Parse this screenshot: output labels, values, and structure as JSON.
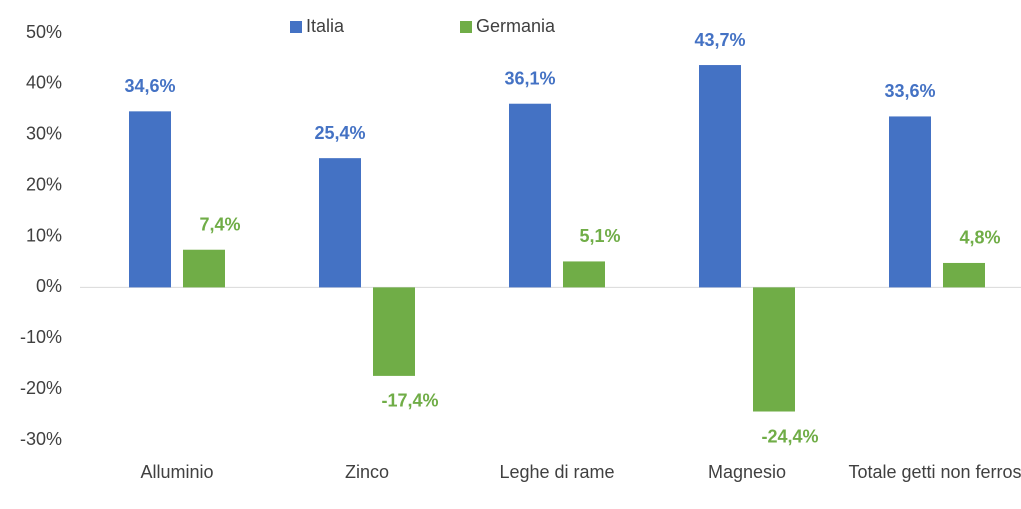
{
  "chart_data": {
    "type": "bar",
    "categories": [
      "Alluminio",
      "Zinco",
      "Leghe di rame",
      "Magnesio",
      "Totale getti non ferrosi"
    ],
    "series": [
      {
        "name": "Italia",
        "color": "#4472c4",
        "values": [
          34.6,
          25.4,
          36.1,
          43.7,
          33.6
        ],
        "value_labels": [
          "34,6%",
          "25,4%",
          "36,1%",
          "43,7%",
          "33,6%"
        ]
      },
      {
        "name": "Germania",
        "color": "#70ad47",
        "values": [
          7.4,
          -17.4,
          5.1,
          -24.4,
          4.8
        ],
        "value_labels": [
          "7,4%",
          "-17,4%",
          "5,1%",
          "-24,4%",
          "4,8%"
        ]
      }
    ],
    "ylim": [
      -30,
      50
    ],
    "yticks": [
      {
        "value": -30,
        "label": "-30%"
      },
      {
        "value": -20,
        "label": "-20%"
      },
      {
        "value": -10,
        "label": "-10%"
      },
      {
        "value": 0,
        "label": "0%"
      },
      {
        "value": 10,
        "label": "10%"
      },
      {
        "value": 20,
        "label": "20%"
      },
      {
        "value": 30,
        "label": "30%"
      },
      {
        "value": 40,
        "label": "40%"
      },
      {
        "value": 50,
        "label": "50%"
      }
    ],
    "legend": "top"
  }
}
